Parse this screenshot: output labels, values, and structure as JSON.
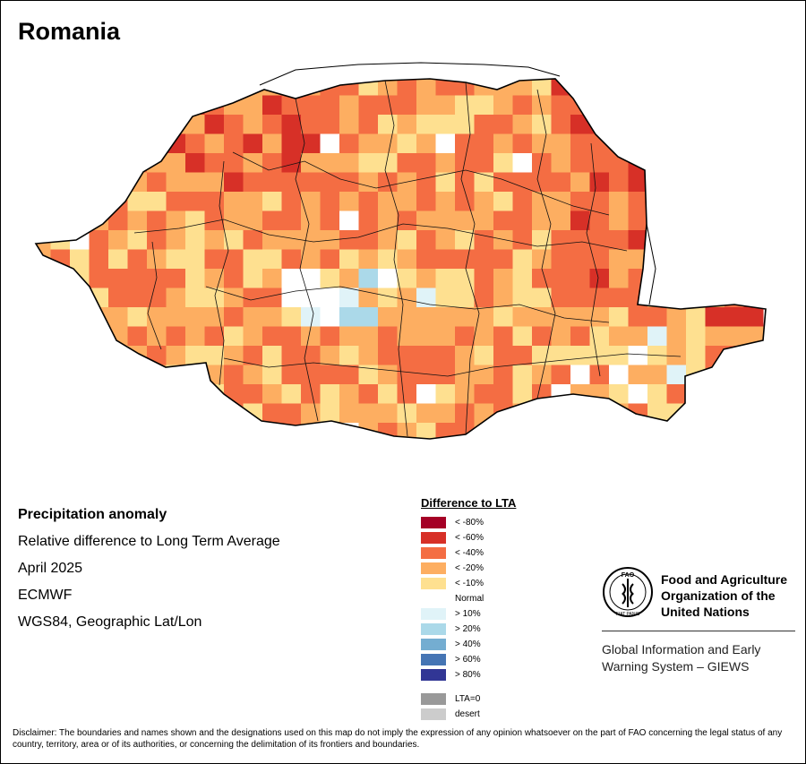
{
  "title": "Romania",
  "info": {
    "heading": "Precipitation anomaly",
    "subtitle": "Relative difference to Long Term Average",
    "period": "April 2025",
    "source": "ECMWF",
    "projection": "WGS84, Geographic Lat/Lon"
  },
  "legend": {
    "title": "Difference to LTA",
    "items": [
      {
        "label": "< -80%",
        "color": "#a50026"
      },
      {
        "label": "< -60%",
        "color": "#d73027"
      },
      {
        "label": "< -40%",
        "color": "#f46d43"
      },
      {
        "label": "< -20%",
        "color": "#fdae61"
      },
      {
        "label": "< -10%",
        "color": "#fee090"
      },
      {
        "label": "Normal",
        "color": "#ffffff"
      },
      {
        "label": "> 10%",
        "color": "#e0f3f8"
      },
      {
        "label": "> 20%",
        "color": "#abd9e9"
      },
      {
        "label": "> 40%",
        "color": "#74add1"
      },
      {
        "label": "> 60%",
        "color": "#4575b4"
      },
      {
        "label": "> 80%",
        "color": "#313695"
      }
    ],
    "extra": [
      {
        "label": "LTA=0",
        "color": "#999999"
      },
      {
        "label": "desert",
        "color": "#cccccc"
      }
    ]
  },
  "org": {
    "logo_text": "FAO",
    "logo_motto": "FIAT PANIS",
    "name_line1": "Food and Agriculture",
    "name_line2": "Organization of the",
    "name_line3": "United Nations",
    "system_line1": "Global Information and Early",
    "system_line2": "Warning System – GIEWS"
  },
  "disclaimer": "Disclaimer: The boundaries and names shown and the designations used on this map do not imply the expression of any opinion whatsoever on the part of FAO concerning the legal status of any country, territory, area or of its authorities, or concerning the delimitation of its frontiers and boundaries."
}
